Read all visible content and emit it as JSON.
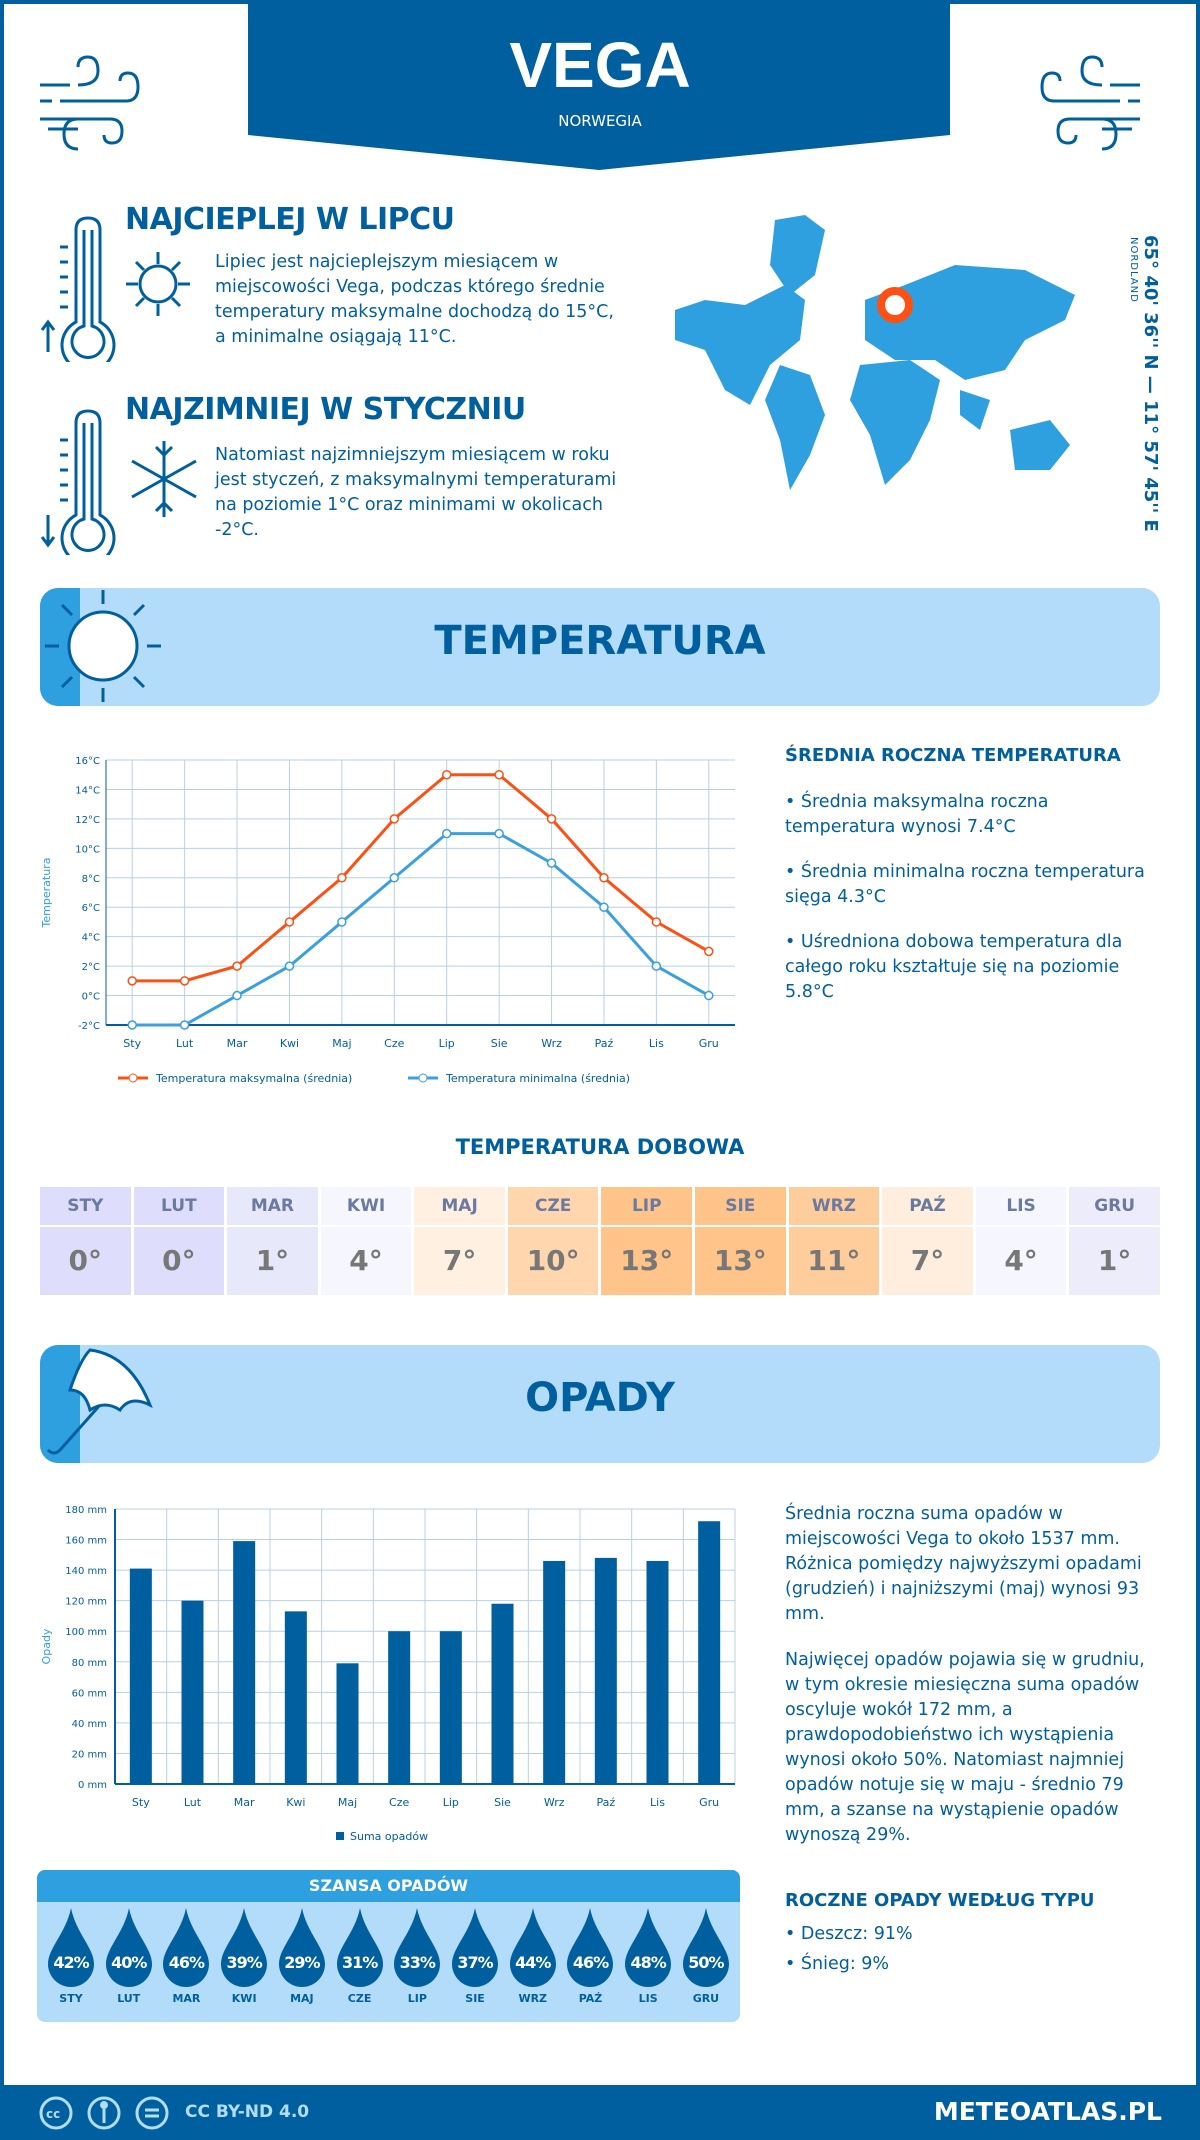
{
  "header": {
    "title": "VEGA",
    "country": "NORWEGIA"
  },
  "warmest": {
    "heading": "NAJCIEPLEJ W LIPCU",
    "text": "Lipiec jest najcieplejszym miesiącem w miejscowości Vega, podczas którego średnie temperatury maksymalne dochodzą do 15°C, a minimalne osiągają 11°C."
  },
  "coldest": {
    "heading": "NAJZIMNIEJ W STYCZNIU",
    "text": "Natomiast najzimniejszym miesiącem w roku jest styczeń, z maksymalnymi temperaturami na poziomie 1°C oraz minimami w okolicach -2°C."
  },
  "location": {
    "coords": "65° 40' 36'' N — 11° 57' 45'' E",
    "region": "NORDLAND"
  },
  "temperature_section": {
    "title": "TEMPERATURA",
    "summary_heading": "ŚREDNIA ROCZNA TEMPERATURA",
    "bullets": [
      "• Średnia maksymalna roczna temperatura wynosi 7.4°C",
      "• Średnia minimalna roczna temperatura sięga 4.3°C",
      "• Uśredniona dobowa temperatura dla całego roku kształtuje się na poziomie 5.8°C"
    ],
    "daily_title": "TEMPERATURA DOBOWA",
    "daily": [
      {
        "m": "STY",
        "v": "0°",
        "c": "#dedefc"
      },
      {
        "m": "LUT",
        "v": "0°",
        "c": "#dedefc"
      },
      {
        "m": "MAR",
        "v": "1°",
        "c": "#e8e8fb"
      },
      {
        "m": "KWI",
        "v": "4°",
        "c": "#f6f6fe"
      },
      {
        "m": "MAJ",
        "v": "7°",
        "c": "#fff0e1"
      },
      {
        "m": "CZE",
        "v": "10°",
        "c": "#ffd6ae"
      },
      {
        "m": "LIP",
        "v": "13°",
        "c": "#ffc48a"
      },
      {
        "m": "SIE",
        "v": "13°",
        "c": "#ffc48a"
      },
      {
        "m": "WRZ",
        "v": "11°",
        "c": "#ffcd9c"
      },
      {
        "m": "PAŹ",
        "v": "7°",
        "c": "#ffeedd"
      },
      {
        "m": "LIS",
        "v": "4°",
        "c": "#f6f6fe"
      },
      {
        "m": "GRU",
        "v": "1°",
        "c": "#ececfb"
      }
    ]
  },
  "precip_section": {
    "title": "OPADY",
    "text1": "Średnia roczna suma opadów w miejscowości Vega to około 1537 mm. Różnica pomiędzy najwyższymi opadami (grudzień) i najniższymi (maj) wynosi 93 mm.",
    "text2": "Najwięcej opadów pojawia się w grudniu, w tym okresie miesięczna suma opadów oscyluje wokół 172 mm, a prawdopodobieństwo ich wystąpienia wynosi około 50%. Natomiast najmniej opadów notuje się w maju - średnio 79 mm, a szanse na wystąpienie opadów wynoszą 29%.",
    "chance_title": "SZANSA OPADÓW",
    "chance": [
      {
        "m": "STY",
        "p": "42%"
      },
      {
        "m": "LUT",
        "p": "40%"
      },
      {
        "m": "MAR",
        "p": "46%"
      },
      {
        "m": "KWI",
        "p": "39%"
      },
      {
        "m": "MAJ",
        "p": "29%"
      },
      {
        "m": "CZE",
        "p": "31%"
      },
      {
        "m": "LIP",
        "p": "33%"
      },
      {
        "m": "SIE",
        "p": "37%"
      },
      {
        "m": "WRZ",
        "p": "44%"
      },
      {
        "m": "PAŹ",
        "p": "46%"
      },
      {
        "m": "LIS",
        "p": "48%"
      },
      {
        "m": "GRU",
        "p": "50%"
      }
    ],
    "type_heading": "ROCZNE OPADY WEDŁUG TYPU",
    "types": [
      "• Deszcz: 91%",
      "• Śnieg: 9%"
    ]
  },
  "colors": {
    "primary": "#005f9e",
    "accent": "#2e9fdf",
    "light": "#b3dcfa",
    "max_line": "#ff5014",
    "min_line": "#3ba0e0",
    "marker": "#ff5014"
  },
  "chart_data": [
    {
      "type": "line",
      "categories": [
        "Sty",
        "Lut",
        "Mar",
        "Kwi",
        "Maj",
        "Cze",
        "Lip",
        "Sie",
        "Wrz",
        "Paź",
        "Lis",
        "Gru"
      ],
      "series": [
        {
          "name": "Temperatura maksymalna (średnia)",
          "values": [
            1,
            1,
            2,
            5,
            8,
            12,
            15,
            15,
            12,
            8,
            5,
            3
          ]
        },
        {
          "name": "Temperatura minimalna (średnia)",
          "values": [
            -2,
            -2,
            0,
            2,
            5,
            8,
            11,
            11,
            9,
            6,
            2,
            0
          ]
        }
      ],
      "ylabel": "Temperatura",
      "ylim": [
        -2,
        16
      ],
      "yticks": [
        "-2°C",
        "0°C",
        "2°C",
        "4°C",
        "6°C",
        "8°C",
        "10°C",
        "12°C",
        "14°C",
        "16°C"
      ],
      "grid": true,
      "legend": "bottom"
    },
    {
      "type": "bar",
      "categories": [
        "Sty",
        "Lut",
        "Mar",
        "Kwi",
        "Maj",
        "Cze",
        "Lip",
        "Sie",
        "Wrz",
        "Paź",
        "Lis",
        "Gru"
      ],
      "series": [
        {
          "name": "Suma opadów",
          "values": [
            141,
            120,
            159,
            113,
            79,
            100,
            100,
            118,
            146,
            148,
            146,
            172
          ]
        }
      ],
      "ylabel": "Opady",
      "ylim": [
        0,
        180
      ],
      "yticks": [
        "0 mm",
        "20 mm",
        "40 mm",
        "60 mm",
        "80 mm",
        "100 mm",
        "120 mm",
        "140 mm",
        "160 mm",
        "180 mm"
      ],
      "grid": true,
      "legend": "bottom"
    }
  ],
  "footer": {
    "license": "CC BY-ND 4.0",
    "site": "METEOATLAS.PL"
  }
}
